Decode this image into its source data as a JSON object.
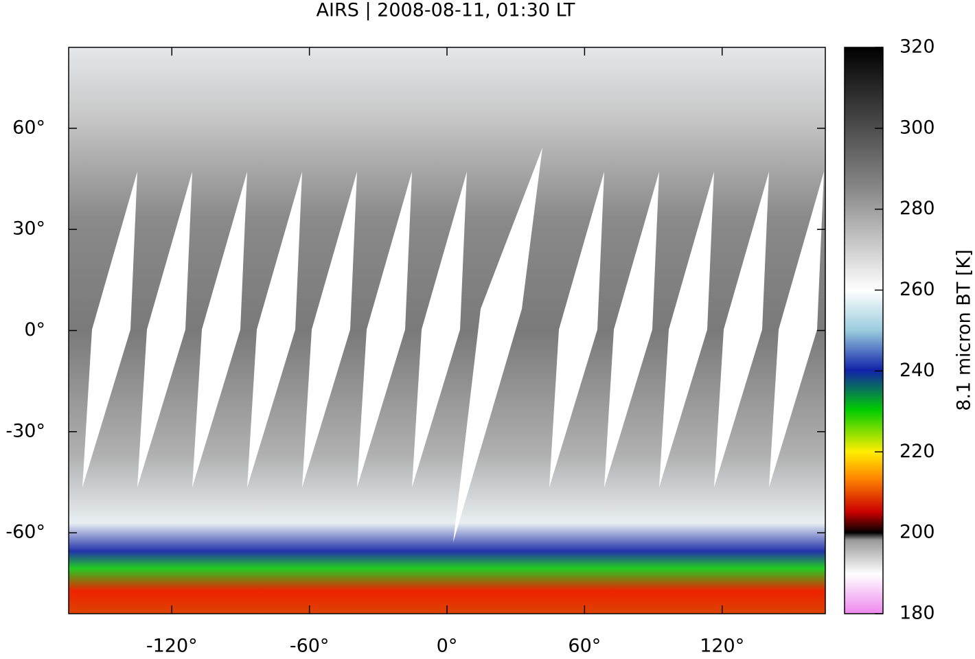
{
  "chart_data": {
    "type": "map",
    "title": "AIRS | 2008-08-11, 01:30 LT",
    "xlim": [
      -165,
      165
    ],
    "ylim": [
      -84,
      84
    ],
    "xticks": [
      {
        "value": -120,
        "label": "-120°"
      },
      {
        "value": -60,
        "label": "-60°"
      },
      {
        "value": 0,
        "label": "0°"
      },
      {
        "value": 60,
        "label": "60°"
      },
      {
        "value": 120,
        "label": "120°"
      }
    ],
    "yticks": [
      {
        "value": -60,
        "label": "-60°"
      },
      {
        "value": -30,
        "label": "-30°"
      },
      {
        "value": 0,
        "label": "0°"
      },
      {
        "value": 30,
        "label": "30°"
      },
      {
        "value": 60,
        "label": "60°"
      }
    ],
    "colorbar": {
      "label": "8.1 micron BT [K]",
      "lim": [
        180,
        320
      ],
      "ticks": [
        180,
        200,
        220,
        240,
        260,
        280,
        300,
        320
      ]
    }
  }
}
